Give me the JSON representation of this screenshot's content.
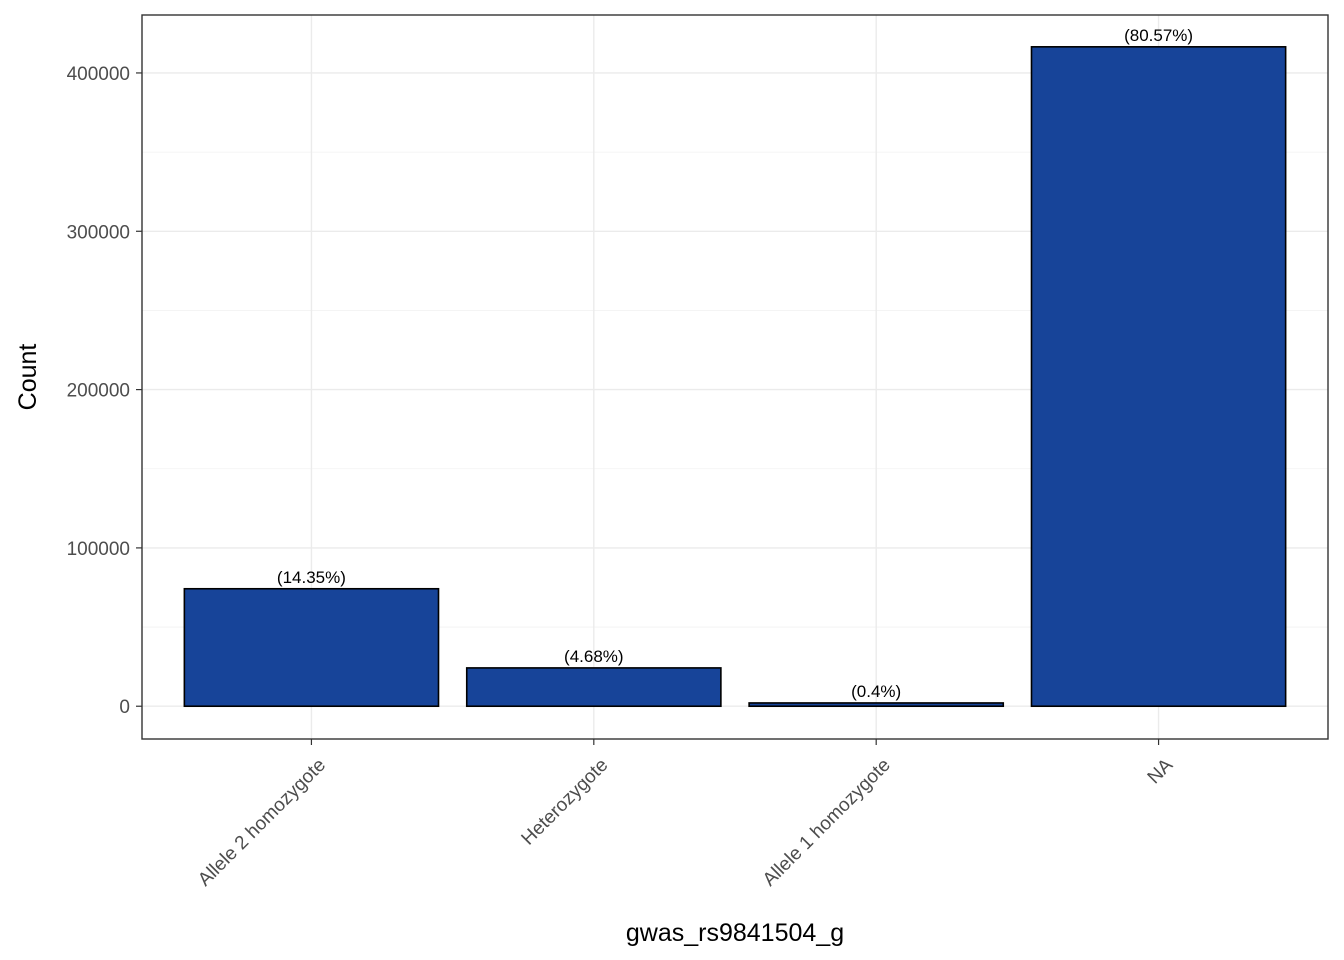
{
  "chart_data": {
    "type": "bar",
    "categories": [
      "Allele 2 homozygote",
      "Heterozygote",
      "Allele 1 homozygote",
      "NA"
    ],
    "values": [
      74200,
      24200,
      2070,
      416500
    ],
    "data_labels": [
      "(14.35%)",
      "(4.68%)",
      "(0.4%)",
      "(80.57%)"
    ],
    "xlabel": "gwas_rs9841504_g",
    "ylabel": "Count",
    "ylim": [
      -20700,
      436600
    ],
    "yticks": [
      0,
      100000,
      200000,
      300000,
      400000
    ],
    "ytick_labels": [
      "0",
      "100000",
      "200000",
      "300000",
      "400000"
    ],
    "grid": true,
    "legend": "none",
    "colors": {
      "bar_fill": "#174499",
      "bar_stroke": "#000000",
      "panel_border": "#333333",
      "grid": "#ebebeb"
    }
  }
}
